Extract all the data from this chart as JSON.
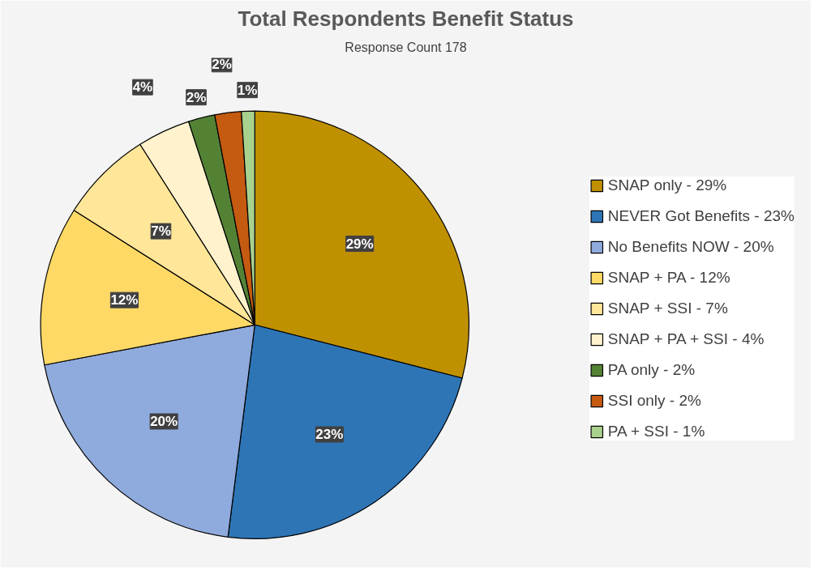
{
  "chart_data": {
    "type": "pie",
    "title": "Total Respondents Benefit Status",
    "subtitle": "Response Count 178",
    "categories": [
      "SNAP only - 29%",
      "NEVER Got Benefits - 23%",
      "No Benefits NOW - 20%",
      "SNAP + PA - 12%",
      "SNAP + SSI - 7%",
      "SNAP + PA + SSI - 4%",
      "PA only - 2%",
      "SSI only - 2%",
      "PA + SSI - 1%"
    ],
    "values": [
      29,
      23,
      20,
      12,
      7,
      4,
      2,
      2,
      1
    ],
    "colors": [
      "#bf9000",
      "#2e75b6",
      "#8faadc",
      "#ffd966",
      "#ffe699",
      "#fff2cc",
      "#548235",
      "#c55a11",
      "#a9d18e"
    ],
    "value_labels": [
      "29%",
      "23%",
      "20%",
      "12%",
      "7%",
      "4%",
      "2%",
      "2%",
      "1%"
    ],
    "legend": "right"
  }
}
